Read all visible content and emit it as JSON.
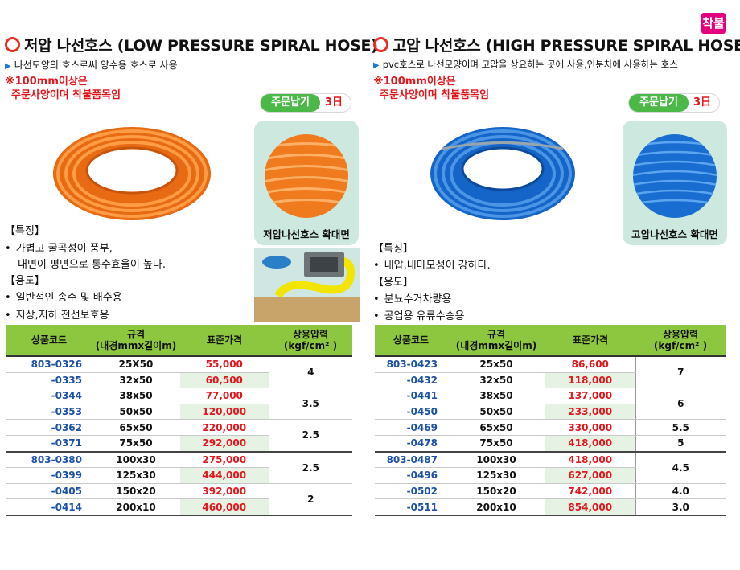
{
  "badge": "착불",
  "left": {
    "title": "저압 나선호스 (LOW PRESSURE SPIRAL HOSE)",
    "subtitle": "나선모양의 호스로써 양수용 호스로 사용",
    "note_line1": "※100mm이상은",
    "note_line2": "주문사양이며 착불품목임",
    "delivery_label": "주문납기",
    "delivery_value": "3日",
    "zoom_caption": "저압나선호스 확대면",
    "features_header": "【특징】",
    "features": [
      "가볍고 굴곡성이 풍부,",
      "내면이 평면으로 통수효율이 높다."
    ],
    "usage_header": "【용도】",
    "usage": [
      "일반적인 송수 및 배수용",
      "지상,지하 전선보호용"
    ],
    "colors": {
      "hose": "#f47a20"
    }
  },
  "right": {
    "title": "고압 나선호스 (HIGH PRESSURE SPIRAL HOSE)",
    "subtitle": "pvc호스로 나선모양이며 고압을 상요하는 곳에 사용,인분차에 사용하는 호스",
    "note_line1": "※100mm이상은",
    "note_line2": "주문사양이며 착불품목임",
    "delivery_label": "주문납기",
    "delivery_value": "3日",
    "zoom_caption": "고압나선호스 확대면",
    "features_header": "【특징】",
    "features": [
      "내압,내마모성이 강하다."
    ],
    "usage_header": "【용도】",
    "usage": [
      "분뇨수거차량용",
      "공업용 유류수송용"
    ],
    "colors": {
      "hose": "#1d6fd1"
    }
  },
  "table_headers": {
    "code": "상품코드",
    "spec_line1": "규격",
    "spec_line2": "(내경mmx길이m)",
    "price": "표준가격",
    "pressure_line1": "상용압력",
    "pressure_line2": "(kgf/cm²  )"
  },
  "left_rows": [
    {
      "code": "803-0326",
      "spec": "25X50",
      "price": "55,000"
    },
    {
      "code": "-0335",
      "spec": "32x50",
      "price": "60,500"
    },
    {
      "code": "-0344",
      "spec": "38x50",
      "price": "77,000"
    },
    {
      "code": "-0353",
      "spec": "50x50",
      "price": "120,000"
    },
    {
      "code": "-0362",
      "spec": "65x50",
      "price": "220,000"
    },
    {
      "code": "-0371",
      "spec": "75x50",
      "price": "292,000"
    },
    {
      "code": "803-0380",
      "spec": "100x30",
      "price": "275,000"
    },
    {
      "code": "-0399",
      "spec": "125x30",
      "price": "444,000"
    },
    {
      "code": "-0405",
      "spec": "150x20",
      "price": "392,000"
    },
    {
      "code": "-0414",
      "spec": "200x10",
      "price": "460,000"
    }
  ],
  "left_pressures": [
    "4",
    "3.5",
    "2.5",
    "2.5",
    "2"
  ],
  "right_rows": [
    {
      "code": "803-0423",
      "spec": "25x50",
      "price": "86,600"
    },
    {
      "code": "-0432",
      "spec": "32x50",
      "price": "118,000"
    },
    {
      "code": "-0441",
      "spec": "38x50",
      "price": "137,000"
    },
    {
      "code": "-0450",
      "spec": "50x50",
      "price": "233,000"
    },
    {
      "code": "-0469",
      "spec": "65x50",
      "price": "330,000"
    },
    {
      "code": "-0478",
      "spec": "75x50",
      "price": "418,000"
    },
    {
      "code": "803-0487",
      "spec": "100x30",
      "price": "418,000"
    },
    {
      "code": "-0496",
      "spec": "125x30",
      "price": "627,000"
    },
    {
      "code": "-0502",
      "spec": "150x20",
      "price": "742,000"
    },
    {
      "code": "-0511",
      "spec": "200x10",
      "price": "854,000"
    }
  ],
  "right_pressures": [
    "7",
    "6",
    "5.5",
    "5",
    "4.5",
    "4.0",
    "3.0"
  ]
}
